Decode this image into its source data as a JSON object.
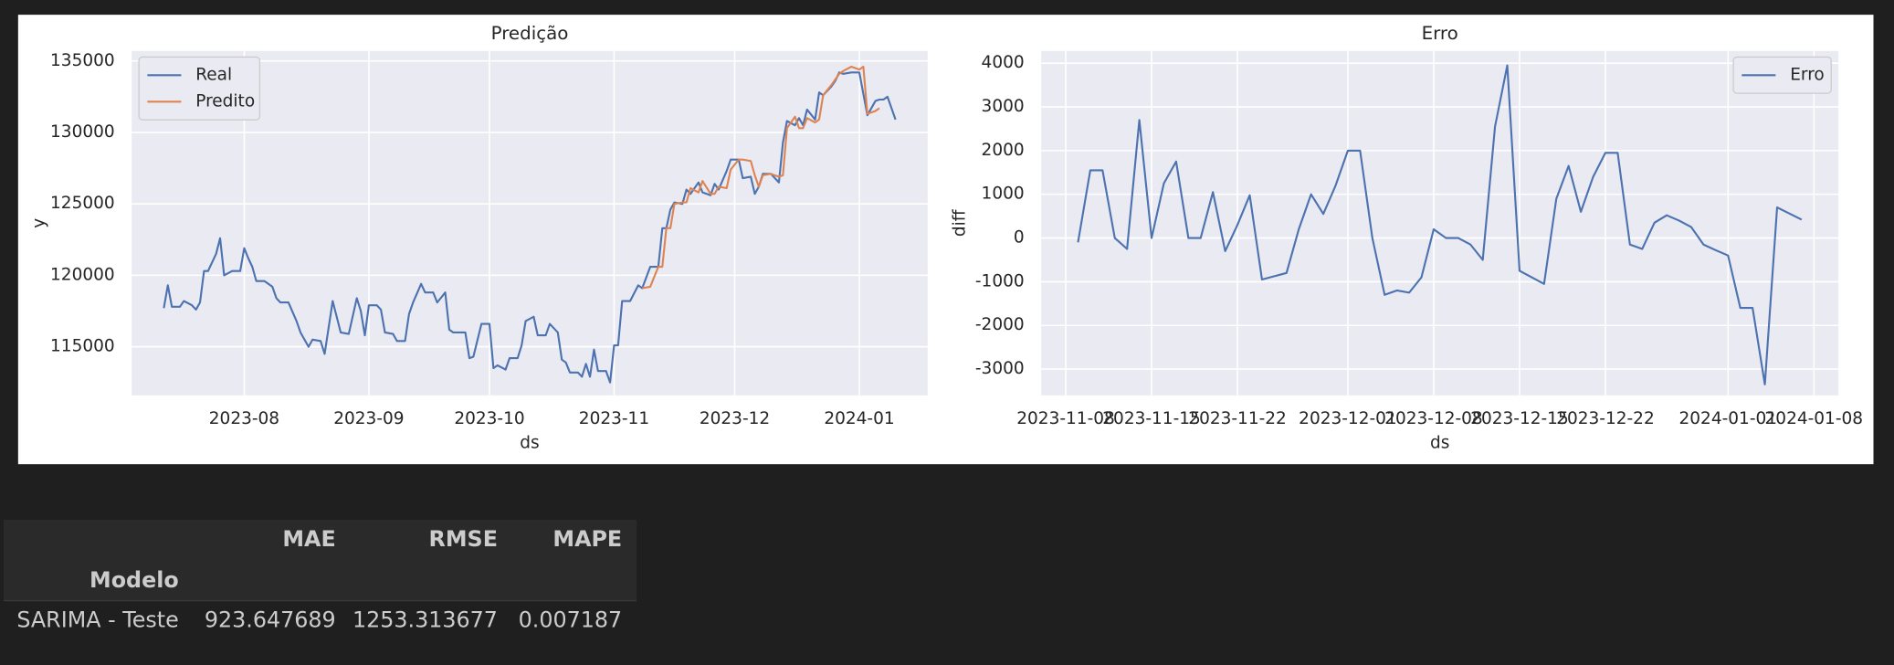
{
  "chart_data": [
    {
      "type": "line",
      "title": "Predição",
      "xlabel": "ds",
      "ylabel": "y",
      "legend": "upper left",
      "grid": true,
      "xlim": [
        "2023-07-04",
        "2024-01-18"
      ],
      "ylim": [
        111600,
        135700
      ],
      "xticks": [
        {
          "value": "2023-08-01",
          "label": "2023-08"
        },
        {
          "value": "2023-09-01",
          "label": "2023-09"
        },
        {
          "value": "2023-10-01",
          "label": "2023-10"
        },
        {
          "value": "2023-11-01",
          "label": "2023-11"
        },
        {
          "value": "2023-12-01",
          "label": "2023-12"
        },
        {
          "value": "2024-01-01",
          "label": "2024-01"
        }
      ],
      "yticks": [
        115000,
        120000,
        125000,
        130000,
        135000
      ],
      "series": [
        {
          "name": "Real",
          "color": "#4c72b0",
          "x": [
            "2023-07-12",
            "2023-07-13",
            "2023-07-14",
            "2023-07-16",
            "2023-07-17",
            "2023-07-19",
            "2023-07-20",
            "2023-07-21",
            "2023-07-22",
            "2023-07-23",
            "2023-07-25",
            "2023-07-26",
            "2023-07-27",
            "2023-07-29",
            "2023-07-31",
            "2023-08-01",
            "2023-08-02",
            "2023-08-03",
            "2023-08-04",
            "2023-08-06",
            "2023-08-08",
            "2023-08-09",
            "2023-08-10",
            "2023-08-12",
            "2023-08-14",
            "2023-08-15",
            "2023-08-17",
            "2023-08-18",
            "2023-08-20",
            "2023-08-21",
            "2023-08-23",
            "2023-08-25",
            "2023-08-27",
            "2023-08-29",
            "2023-08-30",
            "2023-08-31",
            "2023-09-01",
            "2023-09-03",
            "2023-09-04",
            "2023-09-05",
            "2023-09-07",
            "2023-09-08",
            "2023-09-10",
            "2023-09-11",
            "2023-09-12",
            "2023-09-14",
            "2023-09-15",
            "2023-09-17",
            "2023-09-18",
            "2023-09-20",
            "2023-09-21",
            "2023-09-22",
            "2023-09-25",
            "2023-09-26",
            "2023-09-27",
            "2023-09-29",
            "2023-10-01",
            "2023-10-02",
            "2023-10-03",
            "2023-10-05",
            "2023-10-06",
            "2023-10-08",
            "2023-10-09",
            "2023-10-10",
            "2023-10-12",
            "2023-10-13",
            "2023-10-15",
            "2023-10-16",
            "2023-10-18",
            "2023-10-19",
            "2023-10-20",
            "2023-10-21",
            "2023-10-23",
            "2023-10-24",
            "2023-10-25",
            "2023-10-26",
            "2023-10-27",
            "2023-10-28",
            "2023-10-30",
            "2023-10-31",
            "2023-11-01",
            "2023-11-02",
            "2023-11-03",
            "2023-11-05",
            "2023-11-07",
            "2023-11-08",
            "2023-11-10",
            "2023-11-12",
            "2023-11-13",
            "2023-11-14",
            "2023-11-15",
            "2023-11-16",
            "2023-11-18",
            "2023-11-19",
            "2023-11-20",
            "2023-11-22",
            "2023-11-23",
            "2023-11-25",
            "2023-11-26",
            "2023-11-27",
            "2023-11-29",
            "2023-11-30",
            "2023-12-02",
            "2023-12-03",
            "2023-12-05",
            "2023-12-06",
            "2023-12-07",
            "2023-12-08",
            "2023-12-10",
            "2023-12-12",
            "2023-12-13",
            "2023-12-14",
            "2023-12-16",
            "2023-12-17",
            "2023-12-18",
            "2023-12-19",
            "2023-12-21",
            "2023-12-22",
            "2023-12-23",
            "2023-12-25",
            "2023-12-26",
            "2023-12-27",
            "2023-12-28",
            "2023-12-30",
            "2024-01-01",
            "2024-01-02",
            "2024-01-03",
            "2024-01-05",
            "2024-01-06",
            "2024-01-07",
            "2024-01-08",
            "2024-01-10"
          ],
          "values": [
            117700,
            119300,
            117800,
            117800,
            118200,
            117900,
            117600,
            118100,
            120300,
            120300,
            121500,
            122600,
            120000,
            120300,
            120300,
            121900,
            121200,
            120600,
            119600,
            119600,
            119200,
            118400,
            118100,
            118100,
            116800,
            116000,
            115000,
            115500,
            115400,
            114500,
            118200,
            116000,
            115900,
            118400,
            117500,
            115800,
            117900,
            117900,
            117600,
            116000,
            115900,
            115400,
            115400,
            117300,
            118100,
            119400,
            118800,
            118800,
            118100,
            118800,
            116200,
            116000,
            116000,
            114200,
            114300,
            116600,
            116600,
            113500,
            113700,
            113400,
            114200,
            114200,
            115100,
            116800,
            117100,
            115800,
            115800,
            116600,
            116000,
            114100,
            113900,
            113200,
            113200,
            112900,
            113800,
            112900,
            114800,
            113300,
            113300,
            112500,
            115100,
            115100,
            118200,
            118200,
            119300,
            119100,
            120600,
            120600,
            123300,
            123300,
            124600,
            125100,
            125000,
            126000,
            125700,
            126500,
            125800,
            125600,
            126400,
            126000,
            127300,
            128100,
            128100,
            126800,
            126900,
            125700,
            126200,
            127100,
            127100,
            126500,
            129300,
            130800,
            130500,
            131000,
            130500,
            131600,
            130900,
            132800,
            132600,
            133200,
            133600,
            134200,
            134100,
            134200,
            134200,
            132700,
            131200,
            132200,
            132300,
            132300,
            132500,
            130900
          ]
        },
        {
          "name": "Predito",
          "color": "#dd8452",
          "x": [
            "2023-11-08",
            "2023-11-10",
            "2023-11-12",
            "2023-11-13",
            "2023-11-14",
            "2023-11-15",
            "2023-11-16",
            "2023-11-18",
            "2023-11-19",
            "2023-11-20",
            "2023-11-22",
            "2023-11-23",
            "2023-11-25",
            "2023-11-26",
            "2023-11-27",
            "2023-11-29",
            "2023-11-30",
            "2023-12-02",
            "2023-12-03",
            "2023-12-05",
            "2023-12-06",
            "2023-12-07",
            "2023-12-08",
            "2023-12-10",
            "2023-12-12",
            "2023-12-13",
            "2023-12-14",
            "2023-12-16",
            "2023-12-17",
            "2023-12-18",
            "2023-12-19",
            "2023-12-21",
            "2023-12-22",
            "2023-12-23",
            "2023-12-25",
            "2023-12-26",
            "2023-12-27",
            "2023-12-28",
            "2023-12-30",
            "2024-01-01",
            "2024-01-02",
            "2024-01-03",
            "2024-01-05",
            "2024-01-06"
          ],
          "values": [
            119100,
            119200,
            120600,
            120600,
            123300,
            123300,
            125000,
            125100,
            125100,
            126100,
            125800,
            126600,
            125700,
            125700,
            126200,
            126100,
            127400,
            128100,
            128100,
            128000,
            127000,
            126200,
            127000,
            127100,
            126900,
            127000,
            130300,
            131100,
            130300,
            130300,
            131000,
            130700,
            130900,
            132600,
            133300,
            133700,
            134100,
            134300,
            134600,
            134400,
            134600,
            131300,
            131500,
            131700
          ]
        }
      ]
    },
    {
      "type": "line",
      "title": "Erro",
      "xlabel": "ds",
      "ylabel": "diff",
      "legend": "upper right",
      "grid": true,
      "xlim": [
        "2023-11-06",
        "2024-01-10"
      ],
      "ylim": [
        -3600,
        4280
      ],
      "xticks": [
        "2023-11-08",
        "2023-11-15",
        "2023-11-22",
        "2023-12-01",
        "2023-12-08",
        "2023-12-15",
        "2023-12-22",
        "2024-01-01",
        "2024-01-08"
      ],
      "yticks": [
        -3000,
        -2000,
        -1000,
        0,
        1000,
        2000,
        3000,
        4000
      ],
      "series": [
        {
          "name": "Erro",
          "color": "#4c72b0",
          "x": [
            "2023-11-09",
            "2023-11-10",
            "2023-11-11",
            "2023-11-12",
            "2023-11-13",
            "2023-11-14",
            "2023-11-15",
            "2023-11-16",
            "2023-11-17",
            "2023-11-18",
            "2023-11-19",
            "2023-11-20",
            "2023-11-21",
            "2023-11-22",
            "2023-11-23",
            "2023-11-24",
            "2023-11-26",
            "2023-11-27",
            "2023-11-28",
            "2023-11-29",
            "2023-11-30",
            "2023-12-01",
            "2023-12-02",
            "2023-12-03",
            "2023-12-04",
            "2023-12-05",
            "2023-12-06",
            "2023-12-07",
            "2023-12-08",
            "2023-12-09",
            "2023-12-10",
            "2023-12-11",
            "2023-12-12",
            "2023-12-13",
            "2023-12-14",
            "2023-12-15",
            "2023-12-17",
            "2023-12-18",
            "2023-12-19",
            "2023-12-20",
            "2023-12-21",
            "2023-12-22",
            "2023-12-23",
            "2023-12-24",
            "2023-12-25",
            "2023-12-26",
            "2023-12-27",
            "2023-12-28",
            "2023-12-29",
            "2023-12-30",
            "2023-12-31",
            "2024-01-01",
            "2024-01-02",
            "2024-01-03",
            "2024-01-04",
            "2024-01-05",
            "2024-01-07"
          ],
          "values": [
            -100,
            1550,
            1550,
            0,
            -250,
            2700,
            0,
            1250,
            1750,
            0,
            0,
            1050,
            -300,
            300,
            980,
            -950,
            -800,
            200,
            1000,
            550,
            1200,
            2000,
            2000,
            0,
            -1300,
            -1200,
            -1250,
            -900,
            200,
            0,
            0,
            -150,
            -500,
            2550,
            3950,
            -750,
            -1050,
            900,
            1650,
            600,
            1400,
            1950,
            1950,
            -150,
            -250,
            350,
            520,
            400,
            250,
            -150,
            -280,
            -400,
            -1600,
            -1600,
            -3350,
            700,
            420
          ]
        }
      ]
    }
  ],
  "table": {
    "columns": [
      "MAE",
      "RMSE",
      "MAPE"
    ],
    "index_name": "Modelo",
    "rows": [
      {
        "index": "SARIMA - Teste",
        "values": [
          923.647689,
          1253.313677,
          0.007187
        ]
      }
    ]
  }
}
